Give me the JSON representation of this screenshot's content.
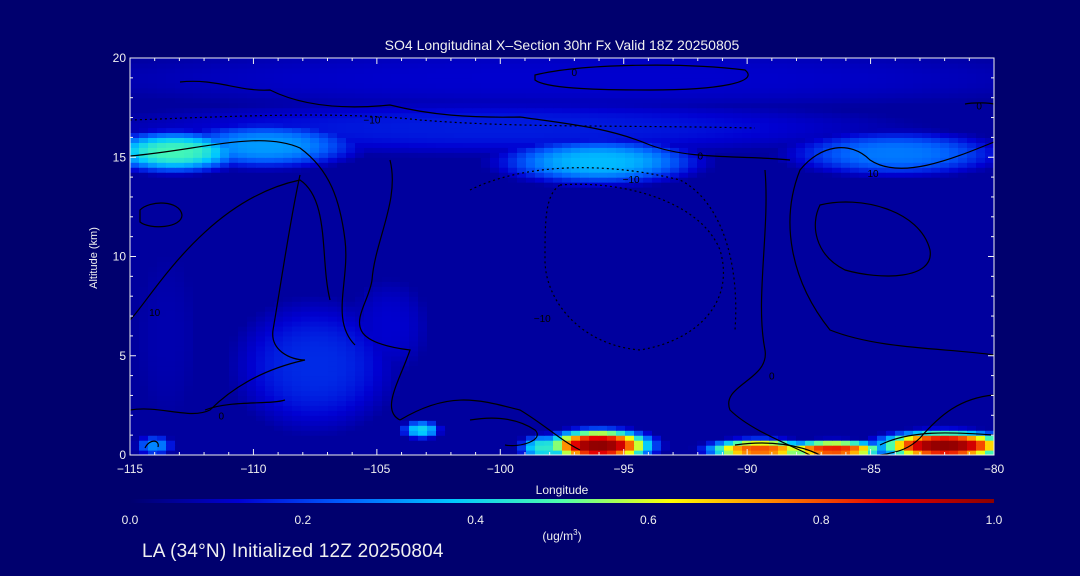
{
  "chart_data": {
    "type": "heatmap",
    "title": "SO4 Longitudinal X–Section 30hr  Fx Valid 18Z 20250805",
    "xlabel": "Longitude",
    "ylabel": "Altitude (km)",
    "xlim": [
      -115,
      -80
    ],
    "ylim": [
      0,
      20
    ],
    "x_ticks": [
      -115,
      -110,
      -105,
      -100,
      -95,
      -90,
      -85,
      -80
    ],
    "x_tick_labels": [
      "−115",
      "−110",
      "−105",
      "−100",
      "−95",
      "−90",
      "−85",
      "−80"
    ],
    "y_ticks": [
      0,
      5,
      10,
      15,
      20
    ],
    "y_tick_labels": [
      "0",
      "5",
      "10",
      "15",
      "20"
    ],
    "colorbar": {
      "min": 0.0,
      "max": 1.0,
      "ticks": [
        0.0,
        0.2,
        0.4,
        0.6,
        0.8,
        1.0
      ],
      "tick_labels": [
        "0.0",
        "0.2",
        "0.4",
        "0.6",
        "0.8",
        "1.0"
      ],
      "units_prefix": "(ug/m",
      "units_sup": "3",
      "units_suffix": ")",
      "colors": [
        "#00006e",
        "#0000d2",
        "#0060ff",
        "#00c8ff",
        "#50ffaa",
        "#ffff00",
        "#ff8000",
        "#e60000",
        "#8c0000"
      ]
    },
    "background_level": 0.06,
    "features": [
      {
        "lon": -96.0,
        "alt": 0.5,
        "slon": 1.6,
        "salt": 0.6,
        "value": 1.0
      },
      {
        "lon": -98.2,
        "alt": 0.4,
        "slon": 0.8,
        "salt": 0.5,
        "value": 0.45
      },
      {
        "lon": -89.5,
        "alt": 0.3,
        "slon": 1.6,
        "salt": 0.4,
        "value": 0.8
      },
      {
        "lon": -86.5,
        "alt": 0.3,
        "slon": 1.6,
        "salt": 0.35,
        "value": 0.85
      },
      {
        "lon": -82.0,
        "alt": 0.5,
        "slon": 2.0,
        "salt": 0.55,
        "value": 1.0
      },
      {
        "lon": -103.2,
        "alt": 1.3,
        "slon": 0.6,
        "salt": 0.35,
        "value": 0.4
      },
      {
        "lon": -114.0,
        "alt": 0.5,
        "slon": 0.6,
        "salt": 0.4,
        "value": 0.3
      },
      {
        "lon": -113.2,
        "alt": 15.3,
        "slon": 2.2,
        "salt": 0.8,
        "value": 0.48
      },
      {
        "lon": -109.5,
        "alt": 15.6,
        "slon": 3.0,
        "salt": 0.9,
        "value": 0.32
      },
      {
        "lon": -96.0,
        "alt": 14.8,
        "slon": 3.2,
        "salt": 0.9,
        "value": 0.36
      },
      {
        "lon": -84.0,
        "alt": 15.2,
        "slon": 3.5,
        "salt": 0.9,
        "value": 0.28
      },
      {
        "lon": -100.0,
        "alt": 16.5,
        "slon": 14.0,
        "salt": 1.2,
        "value": 0.16
      },
      {
        "lon": -97.0,
        "alt": 19.0,
        "slon": 20.0,
        "salt": 1.5,
        "value": 0.12
      },
      {
        "lon": -107.5,
        "alt": 4.5,
        "slon": 2.8,
        "salt": 2.8,
        "value": 0.18
      },
      {
        "lon": -104.5,
        "alt": 6.5,
        "slon": 1.5,
        "salt": 2.2,
        "value": 0.12
      },
      {
        "lon": -113.5,
        "alt": 6.0,
        "slon": 1.5,
        "salt": 5.0,
        "value": 0.08
      }
    ],
    "contour_labels": [
      {
        "text": "0",
        "lon": -97.0,
        "alt": 19.3
      },
      {
        "text": "0",
        "lon": -80.6,
        "alt": 17.6
      },
      {
        "text": "−10",
        "lon": -105.2,
        "alt": 16.9
      },
      {
        "text": "0",
        "lon": -91.9,
        "alt": 15.1
      },
      {
        "text": "−10",
        "lon": -94.7,
        "alt": 13.9
      },
      {
        "text": "10",
        "lon": -84.9,
        "alt": 14.2
      },
      {
        "text": "−10",
        "lon": -98.3,
        "alt": 6.9
      },
      {
        "text": "10",
        "lon": -114.0,
        "alt": 7.2
      },
      {
        "text": "0",
        "lon": -111.3,
        "alt": 2.0
      },
      {
        "text": "0",
        "lon": -89.0,
        "alt": 4.0
      }
    ]
  },
  "footer_text": "LA (34°N) Initialized 12Z 20250804"
}
